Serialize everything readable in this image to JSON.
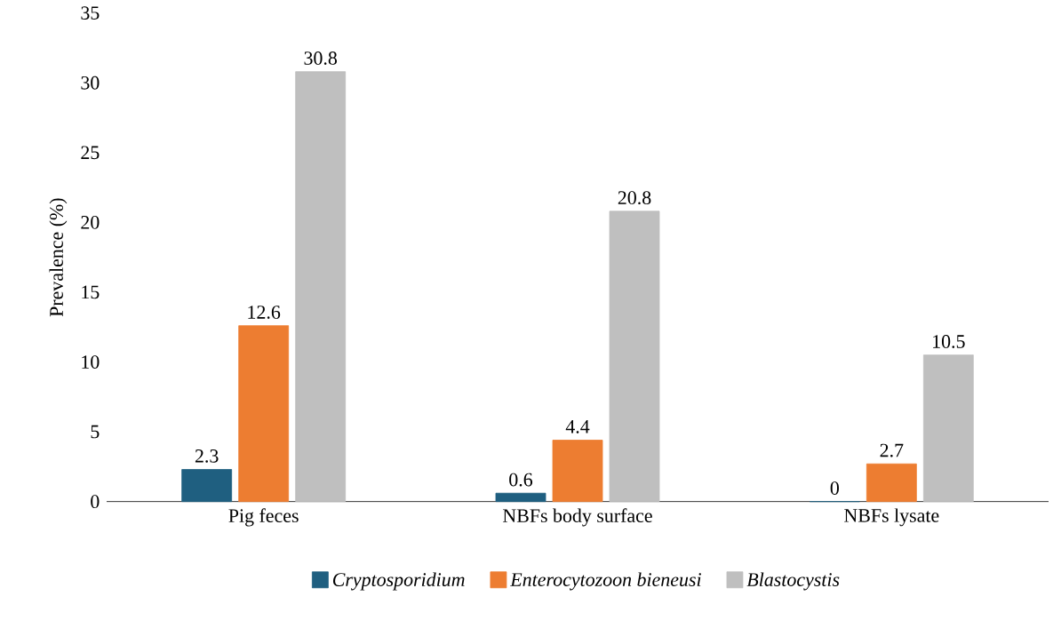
{
  "chart_data": {
    "type": "bar",
    "ylabel": "Prevalence (%)",
    "categories": [
      "Pig feces",
      "NBFs body surface",
      "NBFs lysate"
    ],
    "series": [
      {
        "name": "Cryptosporidium",
        "color": "#1f5f80",
        "values": [
          2.3,
          0.6,
          0
        ]
      },
      {
        "name": "Enterocytozoon bieneusi",
        "color": "#ed7d31",
        "values": [
          12.6,
          4.4,
          2.7
        ]
      },
      {
        "name": "Blastocystis",
        "color": "#bfbfbf",
        "values": [
          30.8,
          20.8,
          10.5
        ]
      }
    ],
    "ylim": [
      0,
      35
    ],
    "yticks": [
      0,
      5,
      10,
      15,
      20,
      25,
      30,
      35
    ],
    "data_labels": true,
    "legend": "bottom",
    "grid": false
  }
}
